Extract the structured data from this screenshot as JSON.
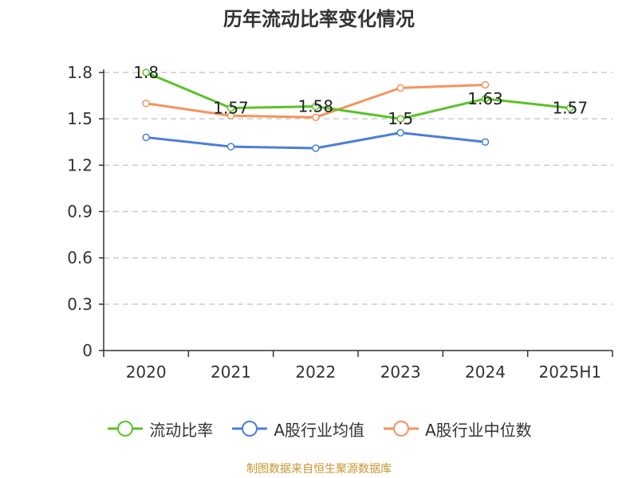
{
  "chart_data": {
    "type": "line",
    "title": "历年流动比率变化情况",
    "categories": [
      "2020",
      "2021",
      "2022",
      "2023",
      "2024",
      "2025H1"
    ],
    "y_ticks": [
      "0",
      "0.3",
      "0.6",
      "0.9",
      "1.2",
      "1.5",
      "1.8"
    ],
    "ylim": [
      0,
      1.8
    ],
    "grid": "horizontal-dashed",
    "legend_position": "bottom",
    "series": [
      {
        "name": "流动比率",
        "color": "#5bc229",
        "values": [
          1.8,
          1.57,
          1.58,
          1.5,
          1.63,
          1.57
        ],
        "labels": [
          "1.8",
          "1.57",
          "1.58",
          "1.5",
          "1.63",
          "1.57"
        ]
      },
      {
        "name": "A股行业均值",
        "color": "#4a7fd9",
        "values": [
          1.38,
          1.32,
          1.31,
          1.41,
          1.35,
          null
        ]
      },
      {
        "name": "A股行业中位数",
        "color": "#f5935d",
        "values": [
          1.6,
          1.52,
          1.51,
          1.7,
          1.72,
          null
        ]
      }
    ]
  },
  "source": "制图数据来自恒生聚源数据库"
}
